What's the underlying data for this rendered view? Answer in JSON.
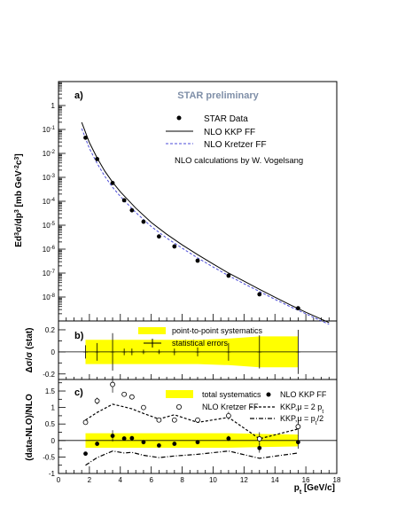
{
  "chart_data": [
    {
      "panel_label": "a)",
      "type": "scatter",
      "annotation": "STAR preliminary",
      "note": "NLO calculations by W. Vogelsang",
      "ylabel": "Ed³σ/dp³ [mb GeV⁻²c³]",
      "ylabel_main": "Ed",
      "ylabel_sup1": "3",
      "ylabel_mid": "σ/dp",
      "ylabel_sup2": "3",
      "ylabel_unit": " [mb GeV",
      "ylabel_sup3": "-2",
      "ylabel_c": "c",
      "ylabel_sup4": "3",
      "ylabel_end": "]",
      "yscale": "log",
      "ylim": [
        1e-09,
        10
      ],
      "xlim": [
        0,
        18
      ],
      "ytick_labels": [
        {
          "base": "10",
          "exp": "-8",
          "v": 1e-08
        },
        {
          "base": "10",
          "exp": "-7",
          "v": 1e-07
        },
        {
          "base": "10",
          "exp": "-6",
          "v": 1e-06
        },
        {
          "base": "10",
          "exp": "-5",
          "v": 1e-05
        },
        {
          "base": "10",
          "exp": "-4",
          "v": 0.0001
        },
        {
          "base": "10",
          "exp": "-3",
          "v": 0.001
        },
        {
          "base": "10",
          "exp": "-2",
          "v": 0.01
        },
        {
          "base": "10",
          "exp": "-1",
          "v": 0.1
        },
        {
          "base": "1",
          "exp": "",
          "v": 1
        }
      ],
      "legend": {
        "placement": "top-right",
        "entries": [
          "STAR Data",
          "NLO KKP FF",
          "NLO Kretzer FF"
        ]
      },
      "series": [
        {
          "name": "STAR Data",
          "x": [
            1.75,
            2.5,
            3.5,
            4.25,
            4.75,
            5.5,
            6.5,
            7.5,
            9.0,
            11.0,
            13.0,
            15.5
          ],
          "y": [
            0.045,
            0.0058,
            0.00058,
            0.00011,
            4.2e-05,
            1.4e-05,
            3.4e-06,
            1.3e-06,
            3.3e-07,
            7.8e-08,
            1.3e-08,
            3.4e-09
          ]
        },
        {
          "name": "NLO KKP FF",
          "x": [
            1.5,
            2.0,
            2.5,
            3.0,
            3.5,
            4.0,
            5.0,
            6.0,
            7.0,
            8.0,
            9.0,
            10.0,
            11.0,
            12.0,
            13.0,
            14.0,
            15.0,
            16.0,
            17.0,
            17.5
          ],
          "y": [
            0.2,
            0.028,
            0.0065,
            0.0018,
            0.00062,
            0.00025,
            5.2e-05,
            1.3e-05,
            4.2e-06,
            1.5e-06,
            5.9e-07,
            2.4e-07,
            1e-07,
            4.6e-08,
            2.1e-08,
            9.8e-09,
            4.7e-09,
            2.3e-09,
            1.2e-09,
            8.5e-10
          ]
        },
        {
          "name": "NLO Kretzer FF",
          "x": [
            1.5,
            2.0,
            2.5,
            3.0,
            3.5,
            4.0,
            5.0,
            6.0,
            7.0,
            8.0,
            9.0,
            10.0,
            11.0,
            12.0,
            13.0,
            14.0,
            15.0,
            16.0,
            17.0,
            17.5
          ],
          "y": [
            0.11,
            0.016,
            0.0038,
            0.0011,
            0.00038,
            0.00016,
            3.4e-05,
            8.8e-06,
            2.9e-06,
            1.1e-06,
            4.3e-07,
            1.8e-07,
            7.8e-08,
            3.6e-08,
            1.7e-08,
            8e-09,
            3.9e-09,
            2e-09,
            1e-09,
            7.3e-10
          ]
        }
      ]
    },
    {
      "panel_label": "b)",
      "type": "scatter",
      "ylabel": "Δσ/σ (stat)",
      "ylim": [
        -0.25,
        0.28
      ],
      "xlim": [
        0,
        18
      ],
      "ytick_labels": [
        "-0.2",
        "0",
        "0.2"
      ],
      "legend": {
        "placement": "top-center",
        "entries": [
          "point-to-point systematics",
          "statistical errors"
        ]
      },
      "systematics_band": {
        "x": [
          1.75,
          2.5,
          3.5,
          4.25,
          4.75,
          5.5,
          6.5,
          7.5,
          9.0,
          11.0,
          13.0,
          15.5
        ],
        "upper": [
          0.11,
          0.11,
          0.11,
          0.11,
          0.11,
          0.11,
          0.11,
          0.11,
          0.11,
          0.12,
          0.14,
          0.14
        ],
        "lower": [
          -0.11,
          -0.11,
          -0.11,
          -0.11,
          -0.11,
          -0.11,
          -0.11,
          -0.11,
          -0.11,
          -0.12,
          -0.14,
          -0.14
        ]
      },
      "series": [
        {
          "name": "statistical errors",
          "x": [
            1.75,
            2.5,
            3.5,
            4.25,
            4.75,
            5.5,
            6.5,
            7.5,
            9.0,
            11.0,
            13.0,
            15.5
          ],
          "y": [
            0,
            0,
            0,
            0,
            0,
            0,
            0,
            0,
            0,
            0,
            0,
            0
          ],
          "err": [
            0.06,
            0.08,
            0.17,
            0.03,
            0.03,
            0.02,
            0.02,
            0.03,
            0.04,
            0.08,
            0.15,
            0.2
          ]
        }
      ]
    },
    {
      "panel_label": "c)",
      "type": "scatter",
      "ylabel": "(data-NLO)/NLO",
      "xlabel": "p_t [GeV/c]",
      "xlabel_main": "p",
      "xlabel_sub": "t",
      "xlabel_unit": " [GeV/c]",
      "ylim": [
        -1,
        1.85
      ],
      "xlim": [
        0,
        18
      ],
      "xtick_labels": [
        "0",
        "2",
        "4",
        "6",
        "8",
        "10",
        "12",
        "14",
        "16",
        "18"
      ],
      "ytick_labels": [
        "-1",
        "-0.5",
        "0",
        "0.5",
        "1",
        "1.5"
      ],
      "legend": {
        "placement": "top-right",
        "entries": [
          "total systematics",
          "NLO Kretzer FF",
          "NLO KKP FF",
          "KKP,μ = 2 p_t",
          "KKP,μ = p_t/2"
        ]
      },
      "legend_kkp2_main": "KKP,μ = 2 p",
      "legend_kkp2_sub": "t",
      "legend_kkph_main": "KKP,μ = p",
      "legend_kkph_sub": "t",
      "legend_kkph_end": "/2",
      "systematics_band": {
        "x": [
          1.75,
          2.5,
          3.5,
          4.25,
          4.75,
          5.5,
          6.5,
          7.5,
          9.0,
          11.0,
          13.0,
          15.5
        ],
        "upper": [
          0.22,
          0.22,
          0.22,
          0.22,
          0.22,
          0.22,
          0.22,
          0.22,
          0.22,
          0.22,
          0.2,
          0.18
        ],
        "lower": [
          -0.22,
          -0.22,
          -0.22,
          -0.22,
          -0.22,
          -0.22,
          -0.22,
          -0.22,
          -0.22,
          -0.22,
          -0.2,
          -0.18
        ]
      },
      "series": [
        {
          "name": "NLO KKP FF",
          "x": [
            1.75,
            2.5,
            3.5,
            4.25,
            4.75,
            5.5,
            6.5,
            7.5,
            9.0,
            11.0,
            13.0,
            15.5
          ],
          "y": [
            -0.4,
            -0.1,
            0.14,
            0.06,
            0.07,
            -0.05,
            -0.15,
            -0.1,
            -0.05,
            0.06,
            -0.23,
            -0.05
          ],
          "err": [
            0.04,
            0.06,
            0.17,
            0.04,
            0.04,
            0.03,
            0.03,
            0.04,
            0.05,
            0.08,
            0.14,
            0.2
          ]
        },
        {
          "name": "NLO Kretzer FF",
          "x": [
            1.75,
            2.5,
            3.5,
            4.25,
            4.75,
            5.5,
            6.5,
            7.5,
            9.0,
            11.0,
            13.0,
            15.5
          ],
          "y": [
            0.55,
            1.2,
            1.7,
            1.4,
            1.32,
            1.0,
            0.62,
            0.62,
            0.62,
            0.75,
            0.05,
            0.42
          ],
          "err": [
            0.06,
            0.1,
            0.25,
            0.06,
            0.06,
            0.05,
            0.05,
            0.06,
            0.08,
            0.12,
            0.2,
            0.28
          ]
        },
        {
          "name": "KKP,μ = 2 p_t",
          "x": [
            1.75,
            2.5,
            3.5,
            4.25,
            4.75,
            5.5,
            6.5,
            7.5,
            9.0,
            11.0,
            13.0,
            15.5
          ],
          "y": [
            0.62,
            0.85,
            1.1,
            1.02,
            0.96,
            0.82,
            0.65,
            0.78,
            0.55,
            0.7,
            0.05,
            0.35
          ]
        },
        {
          "name": "KKP,μ = p_t/2",
          "x": [
            1.75,
            2.5,
            3.5,
            4.25,
            4.75,
            5.5,
            6.5,
            7.5,
            9.0,
            11.0,
            13.0,
            15.5
          ],
          "y": [
            -0.75,
            -0.52,
            -0.32,
            -0.38,
            -0.36,
            -0.45,
            -0.52,
            -0.47,
            -0.42,
            -0.32,
            -0.54,
            -0.38
          ]
        }
      ]
    }
  ]
}
